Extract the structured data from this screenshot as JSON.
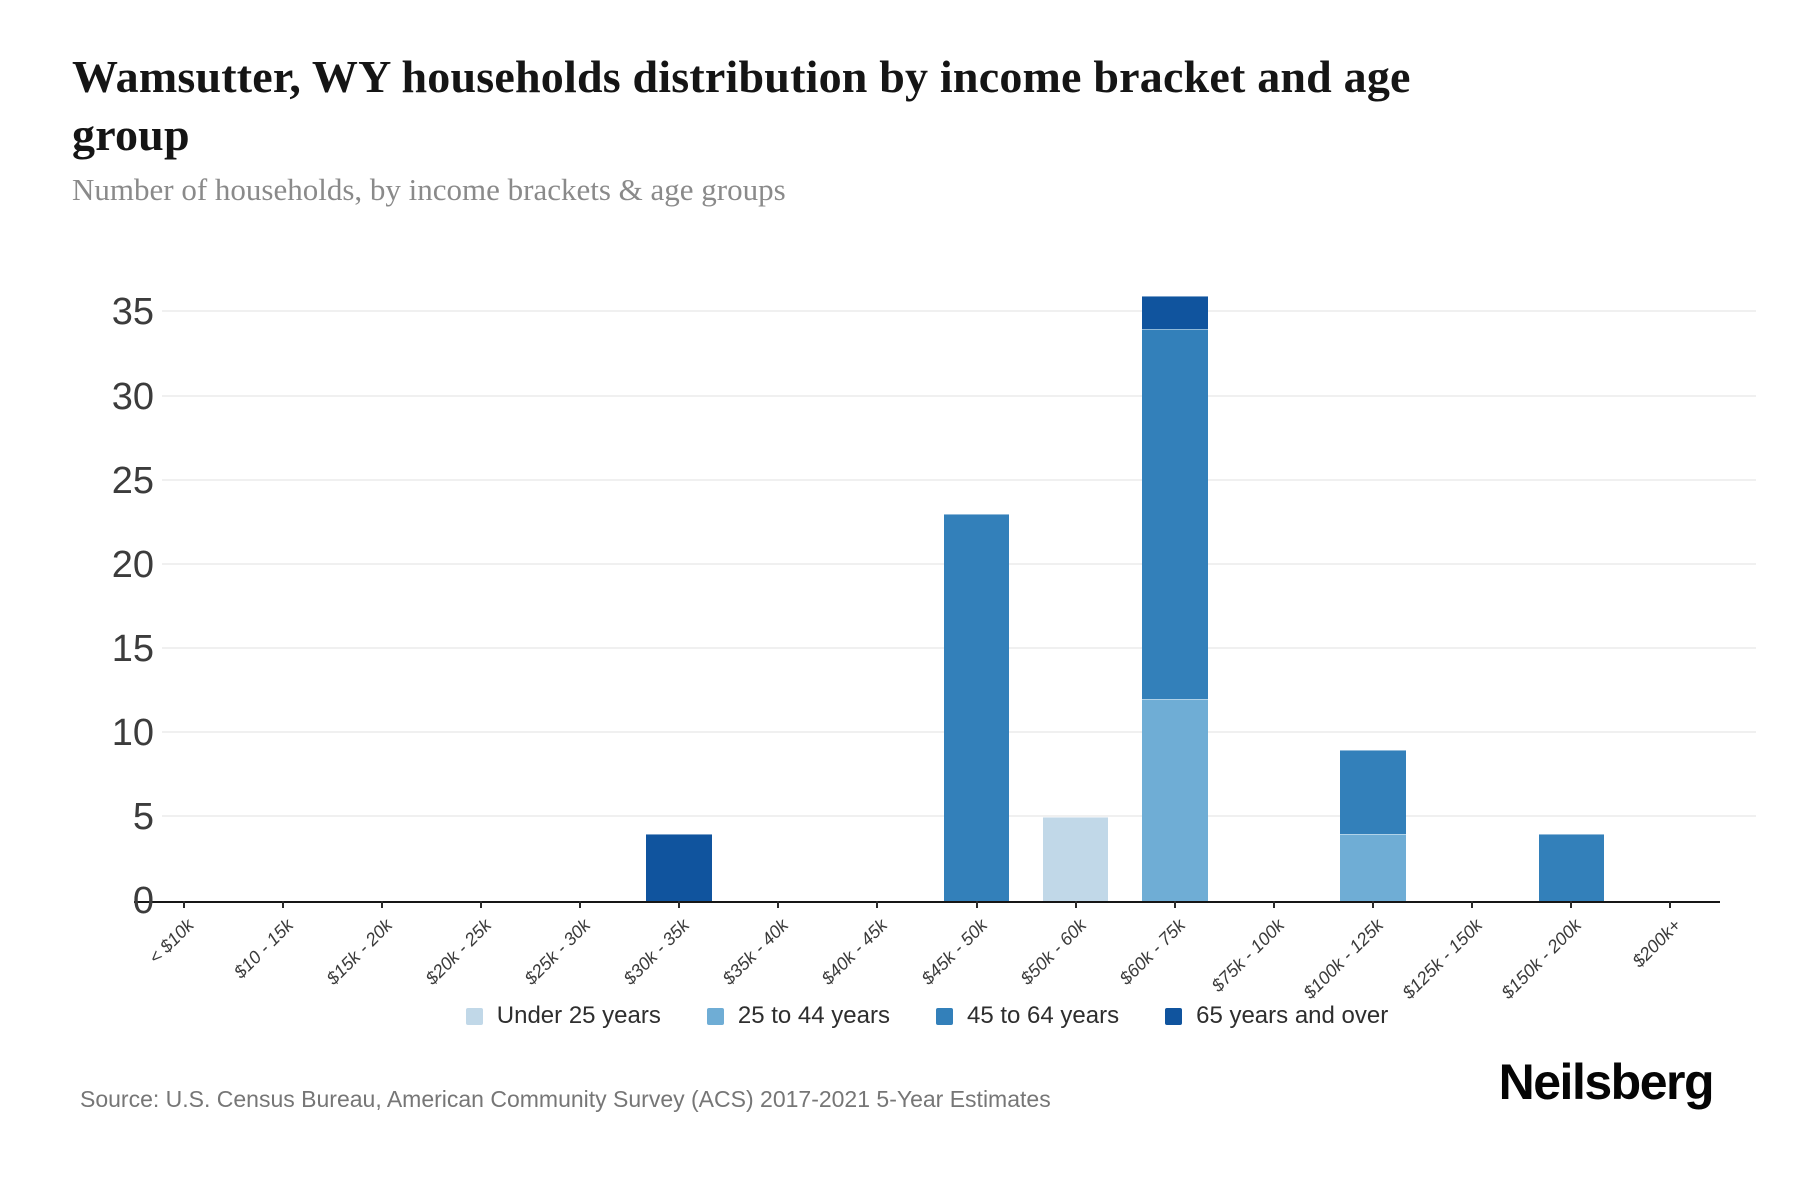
{
  "header": {
    "title": "Wamsutter, WY households distribution by income bracket and age group",
    "subtitle": "Number of households, by income brackets & age groups"
  },
  "footer": {
    "source": "Source: U.S. Census Bureau, American Community Survey (ACS) 2017-2021 5-Year Estimates",
    "brand": "Neilsberg"
  },
  "colors": {
    "axis": "#161616",
    "grid": "#f0f0f0"
  },
  "chart_data": {
    "type": "bar",
    "stacked": true,
    "title": "Wamsutter, WY households distribution by income bracket and age group",
    "xlabel": "",
    "ylabel": "Number of households",
    "categories": [
      "< $10k",
      "$10 - 15k",
      "$15k - 20k",
      "$20k - 25k",
      "$25k - 30k",
      "$30k - 35k",
      "$35k - 40k",
      "$40k - 45k",
      "$45k - 50k",
      "$50k - 60k",
      "$60k - 75k",
      "$75k - 100k",
      "$100k - 125k",
      "$125k - 150k",
      "$150k - 200k",
      "$200k+"
    ],
    "series": [
      {
        "name": "Under 25 years",
        "color": "#c1d8e8",
        "values": [
          0,
          0,
          0,
          0,
          0,
          0,
          0,
          0,
          0,
          5,
          0,
          0,
          0,
          0,
          0,
          0
        ]
      },
      {
        "name": "25 to 44 years",
        "color": "#6fadd5",
        "values": [
          0,
          0,
          0,
          0,
          0,
          0,
          0,
          0,
          0,
          0,
          12,
          0,
          4,
          0,
          0,
          0
        ]
      },
      {
        "name": "45 to 64 years",
        "color": "#3380ba",
        "values": [
          0,
          0,
          0,
          0,
          0,
          0,
          0,
          0,
          23,
          0,
          22,
          0,
          5,
          0,
          4,
          0
        ]
      },
      {
        "name": "65 years and over",
        "color": "#10549e",
        "values": [
          0,
          0,
          0,
          0,
          0,
          4,
          0,
          0,
          0,
          0,
          2,
          0,
          0,
          0,
          0,
          0
        ]
      }
    ],
    "totals_by_category": [
      0,
      0,
      0,
      0,
      0,
      4,
      0,
      0,
      23,
      5,
      36,
      0,
      9,
      0,
      4,
      0
    ],
    "y_ticks": [
      0,
      5,
      10,
      15,
      20,
      25,
      30,
      35
    ],
    "ylim": [
      0,
      38
    ],
    "grid": true,
    "legend_position": "bottom"
  }
}
